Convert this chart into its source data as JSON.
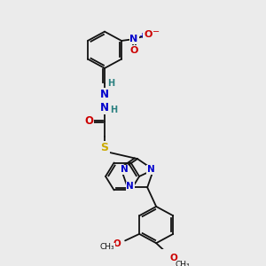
{
  "background_color": "#ebebeb",
  "atom_colors": {
    "N": "#0000cc",
    "O": "#cc0000",
    "S": "#ccaa00",
    "C": "#111111",
    "H": "#2a8080"
  },
  "bond_color": "#111111"
}
